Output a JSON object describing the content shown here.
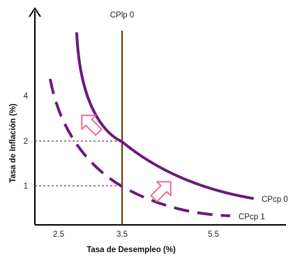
{
  "chart_data": {
    "type": "line",
    "xlabel": "Tasa de Desempleo (%)",
    "ylabel": "Tasa de Inflación (%)",
    "x_ticks": [
      "2.5",
      "3.5",
      "5.5"
    ],
    "y_ticks": [
      "4",
      "2",
      "1"
    ],
    "reference_points": [
      {
        "x": 3.5,
        "y": 2
      },
      {
        "x": 3.5,
        "y": 1
      }
    ],
    "series": [
      {
        "name": "CPcp 0",
        "style": "solid",
        "color": "#6a1b7a"
      },
      {
        "name": "CPcp 1",
        "style": "dashed",
        "color": "#6a1b7a"
      },
      {
        "name": "CPlp 0",
        "style": "vertical-line",
        "x": 3.5,
        "color": "#6b3a10"
      }
    ],
    "shift_arrows": [
      {
        "direction": "down-right",
        "color": "#f06a8a"
      },
      {
        "direction": "up-left",
        "color": "#f06a8a"
      }
    ]
  }
}
